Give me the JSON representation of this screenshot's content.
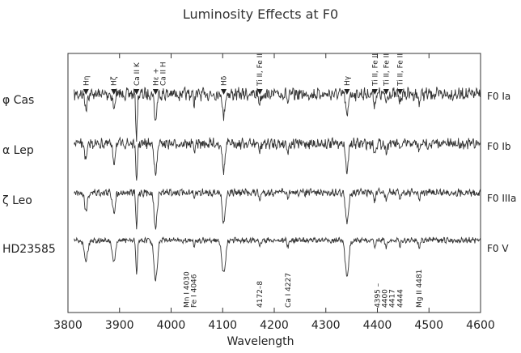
{
  "chart_data": {
    "type": "line",
    "title": "Luminosity Effects at F0",
    "xlabel": "Wavelength",
    "ylabel": "",
    "xlim": [
      3800,
      4600
    ],
    "xticks": [
      3800,
      3900,
      4000,
      4100,
      4200,
      4300,
      4400,
      4500,
      4600
    ],
    "grid": false,
    "series": [
      {
        "name": "φ Cas",
        "class": "F0 Ia"
      },
      {
        "name": "α Lep",
        "class": "F0 Ib"
      },
      {
        "name": "ζ Leo",
        "class": "F0 IIIa"
      },
      {
        "name": "HD23585",
        "class": "F0 V"
      }
    ],
    "lines": [
      {
        "wl": 3835,
        "name": "Hη",
        "d": 0.46
      },
      {
        "wl": 3889,
        "name": "Hζ",
        "d": 0.5
      },
      {
        "wl": 3933,
        "name": "Ca II K",
        "d": 0.95
      },
      {
        "wl": 3970,
        "name": "Hε + Ca II H",
        "d": 0.95
      },
      {
        "wl": 4045,
        "name": "Fe I 4046",
        "d": 0.18
      },
      {
        "wl": 4102,
        "name": "Hδ",
        "d": 0.8
      },
      {
        "wl": 4172,
        "name": "Ti II, Fe II",
        "d": 0.22
      },
      {
        "wl": 4227,
        "name": "Ca I 4227",
        "d": 0.2
      },
      {
        "wl": 4341,
        "name": "Hγ",
        "d": 0.85
      },
      {
        "wl": 4395,
        "name": "Ti II, Fe II",
        "d": 0.25
      },
      {
        "wl": 4417,
        "name": "Ti II, Fe II",
        "d": 0.22
      },
      {
        "wl": 4444,
        "name": "Ti II, Fe II",
        "d": 0.18
      },
      {
        "wl": 4481,
        "name": "Mg II 4481",
        "d": 0.22
      }
    ],
    "top_markers": [
      {
        "wl": 3835,
        "label": "Hη"
      },
      {
        "wl": 3889,
        "label": "Hζ"
      },
      {
        "wl": 3933,
        "label": "Ca II K"
      },
      {
        "wl": 3970,
        "label": "Hε +\nCa II H"
      },
      {
        "wl": 4102,
        "label": "Hδ"
      },
      {
        "wl": 4172,
        "label": "Ti II, Fe II"
      },
      {
        "wl": 4341,
        "label": "Hγ"
      },
      {
        "wl": 4395,
        "label": "Ti II, Fe II"
      },
      {
        "wl": 4417,
        "label": "Ti II, Fe II"
      },
      {
        "wl": 4444,
        "label": "Ti II, Fe II"
      }
    ],
    "bottom_markers": [
      {
        "wl": 4030,
        "label": "Mn I 4030\nFe I 4046"
      },
      {
        "wl": 4172,
        "label": "4172–8"
      },
      {
        "wl": 4227,
        "label": "Ca I 4227"
      },
      {
        "wl": 4400,
        "label": "4395 –\n4400\n4417"
      },
      {
        "wl": 4444,
        "label": "4444"
      },
      {
        "wl": 4481,
        "label": "Mg II 4481"
      }
    ]
  }
}
